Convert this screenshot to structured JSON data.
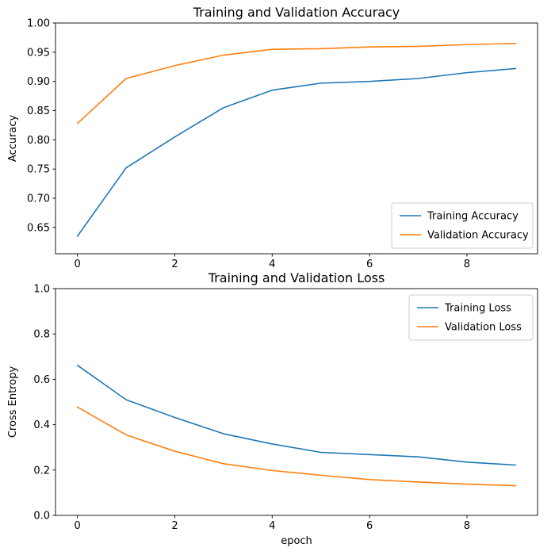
{
  "figure": {
    "background": "#ffffff"
  },
  "chart_data": [
    {
      "id": "accuracy",
      "type": "line",
      "title": "Training and Validation Accuracy",
      "xlabel": "",
      "ylabel": "Accuracy",
      "x": [
        0,
        1,
        2,
        3,
        4,
        5,
        6,
        7,
        8,
        9
      ],
      "xlim": [
        -0.45,
        9.45
      ],
      "ylim": [
        0.605,
        1.0
      ],
      "grid": false,
      "xticks": {
        "values": [
          0,
          2,
          4,
          6,
          8
        ],
        "labels": [
          "0",
          "2",
          "4",
          "6",
          "8"
        ]
      },
      "yticks": {
        "values": [
          0.65,
          0.7,
          0.75,
          0.8,
          0.85,
          0.9,
          0.95,
          1.0
        ],
        "labels": [
          "0.65",
          "0.70",
          "0.75",
          "0.80",
          "0.85",
          "0.90",
          "0.95",
          "1.00"
        ]
      },
      "series": [
        {
          "name": "Training Accuracy",
          "color": "#1f77b4",
          "values": [
            0.635,
            0.752,
            0.805,
            0.855,
            0.885,
            0.897,
            0.9,
            0.905,
            0.915,
            0.922
          ]
        },
        {
          "name": "Validation Accuracy",
          "color": "#ff7f0e",
          "values": [
            0.828,
            0.905,
            0.927,
            0.945,
            0.955,
            0.956,
            0.959,
            0.96,
            0.963,
            0.965
          ]
        }
      ],
      "legend": {
        "position": "lower right"
      }
    },
    {
      "id": "loss",
      "type": "line",
      "title": "Training and Validation Loss",
      "xlabel": "epoch",
      "ylabel": "Cross Entropy",
      "x": [
        0,
        1,
        2,
        3,
        4,
        5,
        6,
        7,
        8,
        9
      ],
      "xlim": [
        -0.45,
        9.45
      ],
      "ylim": [
        0.0,
        1.0
      ],
      "grid": false,
      "xticks": {
        "values": [
          0,
          2,
          4,
          6,
          8
        ],
        "labels": [
          "0",
          "2",
          "4",
          "6",
          "8"
        ]
      },
      "yticks": {
        "values": [
          0.0,
          0.2,
          0.4,
          0.6,
          0.8,
          1.0
        ],
        "labels": [
          "0.0",
          "0.2",
          "0.4",
          "0.6",
          "0.8",
          "1.0"
        ]
      },
      "series": [
        {
          "name": "Training Loss",
          "color": "#1f77b4",
          "values": [
            0.662,
            0.51,
            0.432,
            0.36,
            0.315,
            0.278,
            0.268,
            0.258,
            0.235,
            0.222
          ]
        },
        {
          "name": "Validation Loss",
          "color": "#ff7f0e",
          "values": [
            0.478,
            0.355,
            0.283,
            0.228,
            0.198,
            0.177,
            0.158,
            0.147,
            0.138,
            0.131
          ]
        }
      ],
      "legend": {
        "position": "upper right"
      }
    }
  ]
}
